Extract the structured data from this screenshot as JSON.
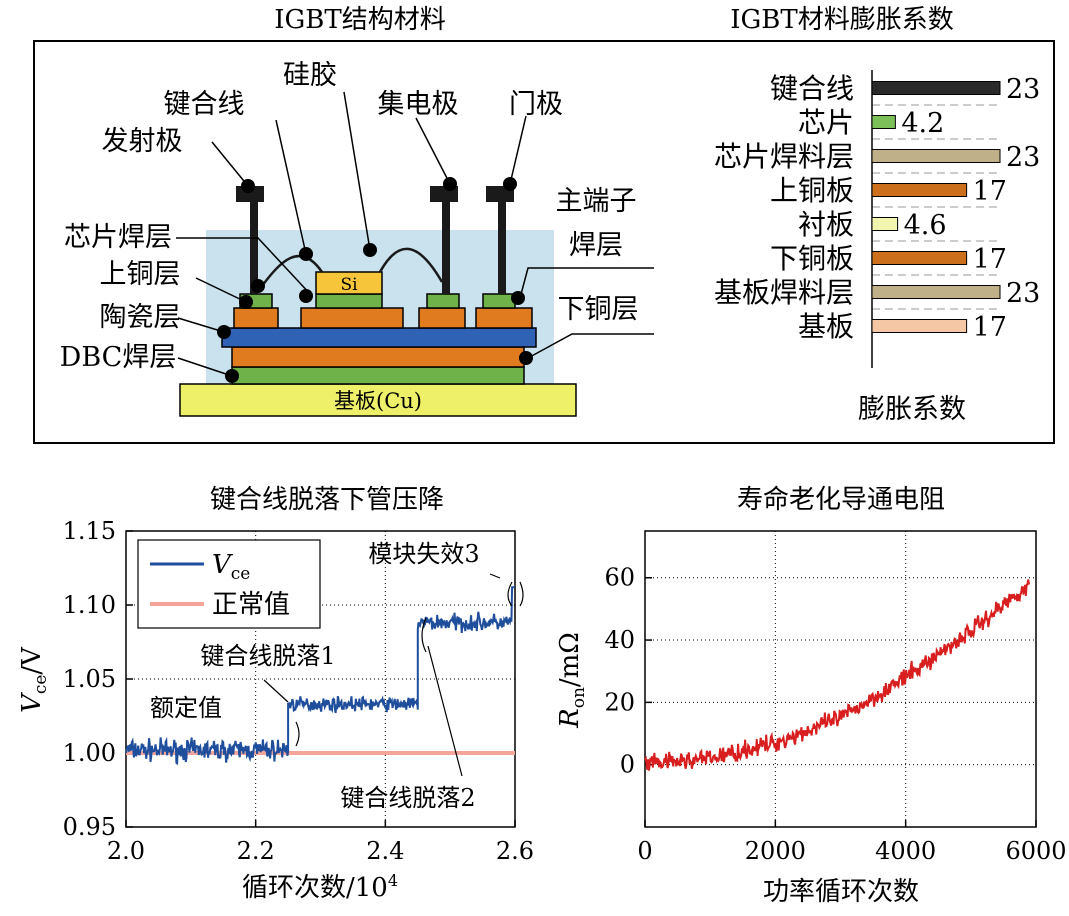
{
  "colors": {
    "blue_series": "#1f4e9c",
    "normal_line": "#f4a49a",
    "red_series": "#d81e1e",
    "encapsulation": "#c9e2ee",
    "wire_black": "#1a1a1a",
    "chip_green": "#6fb24a",
    "chip_yellow": "#f6c53a",
    "copper_orange": "#e07b1f",
    "dbc_blue": "#2f61b4",
    "substrate_yellow": "#eef06a",
    "bar_dark": "#2a2a2a",
    "bar_green": "#7cc05a",
    "bar_tan": "#bfb08a",
    "bar_copper": "#cc6f1c",
    "bar_pale": "#f2f5b0",
    "bar_peach": "#f6c7a4"
  },
  "structure": {
    "title": "IGBT结构材料",
    "labels": {
      "emitter": "发射极",
      "bond_wire": "键合线",
      "silicone": "硅胶",
      "collector": "集电极",
      "gate": "门极",
      "chip_solder": "芯片焊层",
      "upper_copper": "上铜层",
      "ceramic": "陶瓷层",
      "dbc_solder": "DBC焊层",
      "main_terminal_solder_line1": "主端子",
      "main_terminal_solder_line2": "焊层",
      "lower_copper": "下铜层",
      "chip": "Si",
      "baseplate": "基板(Cu)"
    }
  },
  "chart_data": [
    {
      "type": "bar",
      "orientation": "horizontal",
      "title": "IGBT材料膨胀系数",
      "xlabel": "膨胀系数",
      "categories": [
        "键合线",
        "芯片",
        "芯片焊料层",
        "上铜板",
        "衬板",
        "下铜板",
        "基板焊料层",
        "基板"
      ],
      "values": [
        23,
        4.2,
        23,
        17,
        4.6,
        17,
        23,
        17
      ],
      "value_labels": [
        "23",
        "4.2",
        "23",
        "17",
        "4.6",
        "17",
        "23",
        "17"
      ],
      "bar_colors": [
        "#2a2a2a",
        "#7cc05a",
        "#bfb08a",
        "#cc6f1c",
        "#f2f5b0",
        "#cc6f1c",
        "#bfb08a",
        "#f6c7a4"
      ],
      "grid": "dashed horizontal separators"
    },
    {
      "type": "line",
      "title": "键合线脱落下管压降",
      "xlabel": "循环次数/10",
      "xlabel_sup": "4",
      "ylabel": "V",
      "ylabel_sub": "ce",
      "ylabel_unit": "/V",
      "xlim": [
        2.0,
        2.6
      ],
      "ylim": [
        0.95,
        1.15
      ],
      "xticks": [
        "2.0",
        "2.2",
        "2.4",
        "2.6"
      ],
      "yticks": [
        "0.95",
        "1.00",
        "1.05",
        "1.10",
        "1.15"
      ],
      "grid": true,
      "legend": {
        "position": "top-left",
        "entries": [
          {
            "name": "V",
            "sub": "ce",
            "color": "#1f4e9c"
          },
          {
            "name": "正常值",
            "color": "#f4a49a"
          }
        ]
      },
      "series": [
        {
          "name": "Vce",
          "segments": [
            {
              "x": [
                2.0,
                2.25
              ],
              "mean": 1.002,
              "noise": 0.006
            },
            {
              "x": [
                2.25,
                2.45
              ],
              "mean": 1.033,
              "noise": 0.004
            },
            {
              "x": [
                2.45,
                2.6
              ],
              "mean": 1.088,
              "noise": 0.005
            }
          ],
          "end_value": 1.112
        },
        {
          "name": "正常值",
          "x": [
            2.0,
            2.6
          ],
          "y": [
            1.0,
            1.0
          ]
        }
      ],
      "annotations": {
        "rated": "额定值",
        "drop1": "键合线脱落1",
        "drop2": "键合线脱落2",
        "failure": "模块失效3"
      }
    },
    {
      "type": "line",
      "title": "寿命老化导通电阻",
      "xlabel": "功率循环次数",
      "ylabel": "R",
      "ylabel_sub": "on",
      "ylabel_unit": "/mΩ",
      "xlim": [
        0,
        6000
      ],
      "ylim": [
        -20,
        75
      ],
      "xticks": [
        "0",
        "2000",
        "4000",
        "6000"
      ],
      "yticks": [
        "0",
        "20",
        "40",
        "60"
      ],
      "grid": true,
      "series": [
        {
          "name": "Ron",
          "x": [
            0,
            1000,
            2000,
            3000,
            4000,
            5000,
            5900
          ],
          "y": [
            0,
            2,
            7,
            15,
            28,
            43,
            58
          ],
          "noise": 2.5
        }
      ]
    }
  ]
}
